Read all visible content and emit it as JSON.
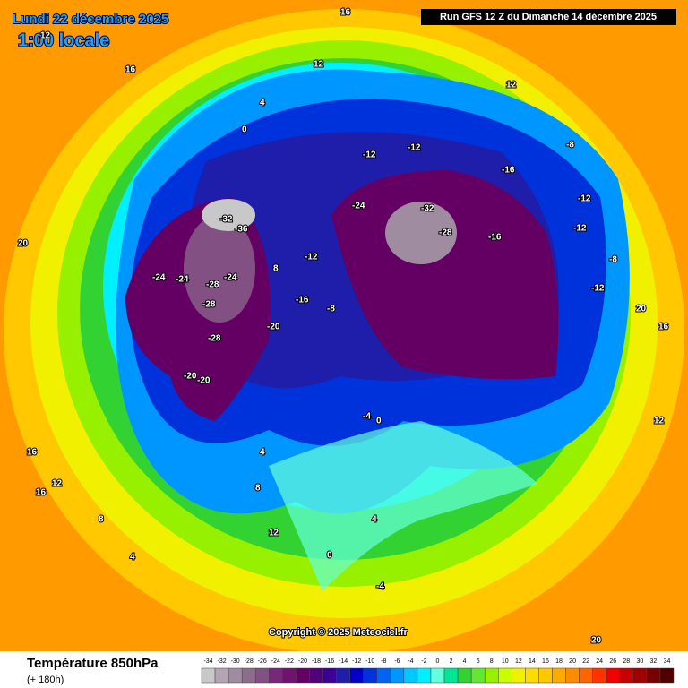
{
  "header": {
    "date": "Lundi 22 décembre 2025",
    "time": "1:00 locale",
    "run": "Run GFS 12 Z du Dimanche 14 décembre 2025"
  },
  "copyright": "Copyright © 2025 Meteociel.fr",
  "legend": {
    "title": "Température 850hPa",
    "subtitle": "(+ 180h)",
    "ticks": [
      -34,
      -32,
      -30,
      -28,
      -26,
      -24,
      -22,
      -20,
      -18,
      -16,
      -14,
      -12,
      -10,
      -8,
      -6,
      -4,
      -2,
      0,
      2,
      4,
      6,
      8,
      10,
      12,
      14,
      16,
      18,
      20,
      22,
      24,
      26,
      28,
      30,
      32,
      34
    ],
    "colors": [
      "#c8c8c8",
      "#b4a5b4",
      "#a08ca0",
      "#8c6e8c",
      "#825082",
      "#782878",
      "#6e146e",
      "#640064",
      "#500078",
      "#3c0096",
      "#1e1eaa",
      "#0000c8",
      "#0032dc",
      "#0064f0",
      "#0096ff",
      "#00c8ff",
      "#00f0ff",
      "#64ffdc",
      "#00e696",
      "#32d232",
      "#64e632",
      "#96f000",
      "#c8ff00",
      "#f0f000",
      "#ffdc00",
      "#ffc800",
      "#ffaa00",
      "#ff8c00",
      "#ff6400",
      "#ff3200",
      "#f00000",
      "#c80000",
      "#a00000",
      "#780000",
      "#500000"
    ]
  },
  "map_labels": [
    "12",
    "16",
    "16",
    "12",
    "8",
    "12",
    "4",
    "0",
    "-12",
    "-12",
    "-16",
    "-24",
    "-32",
    "-28",
    "-24",
    "-28",
    "-24",
    "-16",
    "-12",
    "-8",
    "-12",
    "-32",
    "-36",
    "-24",
    "-28",
    "-20",
    "-28",
    "-20",
    "-20",
    "-16",
    "-12",
    "-8",
    "-4",
    "0",
    "4",
    "4",
    "8",
    "12",
    "16",
    "20",
    "16",
    "12",
    "8",
    "4",
    "0",
    "-4",
    "-8",
    "-12",
    "16",
    "20",
    "20",
    "12"
  ]
}
